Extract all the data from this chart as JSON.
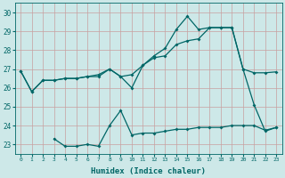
{
  "xlabel": "Humidex (Indice chaleur)",
  "bg_color": "#cde8e8",
  "grid_color": "#b0d0d0",
  "line_color": "#006666",
  "xlim": [
    -0.5,
    23.5
  ],
  "ylim": [
    22.5,
    30.5
  ],
  "xticks": [
    0,
    1,
    2,
    3,
    4,
    5,
    6,
    7,
    8,
    9,
    10,
    11,
    12,
    13,
    14,
    15,
    16,
    17,
    18,
    19,
    20,
    21,
    22,
    23
  ],
  "yticks": [
    23,
    24,
    25,
    26,
    27,
    28,
    29,
    30
  ],
  "line1_x": [
    0,
    1,
    2,
    3,
    4,
    5,
    6,
    7,
    8,
    9,
    10,
    11,
    12,
    13,
    14,
    15,
    16,
    17,
    18,
    19,
    20,
    21,
    22,
    23
  ],
  "line1_y": [
    26.9,
    25.8,
    26.4,
    26.4,
    26.5,
    26.5,
    26.6,
    26.7,
    27.0,
    26.6,
    26.7,
    27.2,
    27.6,
    27.7,
    28.3,
    28.5,
    28.6,
    29.2,
    29.2,
    29.2,
    27.0,
    26.8,
    26.8,
    26.85
  ],
  "line2_x": [
    0,
    1,
    2,
    3,
    4,
    5,
    6,
    7,
    8,
    9,
    10,
    11,
    12,
    13,
    14,
    15,
    16,
    17,
    18,
    19,
    20,
    21,
    22,
    23
  ],
  "line2_y": [
    26.9,
    25.8,
    26.4,
    26.4,
    26.5,
    26.5,
    26.6,
    26.6,
    27.0,
    26.6,
    26.0,
    27.2,
    27.7,
    28.1,
    29.1,
    29.8,
    29.1,
    29.2,
    29.2,
    29.2,
    27.0,
    25.1,
    23.7,
    23.9
  ],
  "line3_x": [
    3,
    4,
    5,
    6,
    7,
    8,
    9,
    10,
    11,
    12,
    13,
    14,
    15,
    16,
    17,
    18,
    19,
    20,
    21,
    22,
    23
  ],
  "line3_y": [
    23.3,
    22.9,
    22.9,
    23.0,
    22.9,
    24.0,
    24.8,
    23.5,
    23.6,
    23.6,
    23.7,
    23.8,
    23.8,
    23.9,
    23.9,
    23.9,
    24.0,
    24.0,
    24.0,
    23.75,
    23.9
  ]
}
